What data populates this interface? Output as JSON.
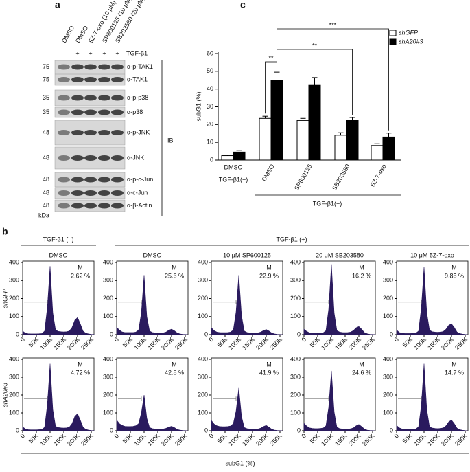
{
  "panel_labels": [
    "a",
    "b",
    "c"
  ],
  "blot": {
    "treatments": [
      "DMSO",
      "DMSO",
      "5Z-7-oxo (10 μM)",
      "SP600125 (10 μM)",
      "SB203580 (20 μM)"
    ],
    "tgf_signs": [
      "–",
      "+",
      "+",
      "+",
      "+"
    ],
    "tgf_label": "TGF-β1",
    "rows": [
      {
        "marker": "75",
        "label": "α-p-TAK1"
      },
      {
        "marker": "75",
        "label": "α-TAK1"
      },
      {
        "marker": "35",
        "label": "α-p-p38"
      },
      {
        "marker": "35",
        "label": "α-p38"
      },
      {
        "marker": "48",
        "label": "α-p-JNK"
      },
      {
        "marker": "48",
        "label": "α-JNK"
      },
      {
        "marker": "48",
        "label": "α-p-c-Jun"
      },
      {
        "marker": "48",
        "label": "α-c-Jun"
      },
      {
        "marker": "48",
        "label": "α-β-Actin"
      }
    ],
    "kda": "kDa",
    "ib": "IB"
  },
  "chart_data": {
    "type": "bar",
    "ylabel": "subG1 (%)",
    "categories": [
      "DMSO",
      "DMSO",
      "SP600125",
      "SB203580",
      "5Z-7-oxo"
    ],
    "group_labels": [
      "TGF-β1(−)",
      "TGF-β1(+)"
    ],
    "series": [
      {
        "name": "shGFP",
        "color": "#ffffff",
        "values": [
          2.5,
          23.5,
          22.3,
          14,
          8.2
        ],
        "errors": [
          0.4,
          1.2,
          1.2,
          1.4,
          1
        ]
      },
      {
        "name": "shA20#3",
        "color": "#000000",
        "values": [
          4.5,
          45,
          42.5,
          22.5,
          13
        ],
        "errors": [
          1,
          4.5,
          4,
          1.5,
          2.2
        ]
      }
    ],
    "ylim": [
      0,
      60
    ],
    "yticks": [
      0,
      10,
      20,
      30,
      40,
      50,
      60
    ],
    "annotations": [
      "**",
      "**",
      "***"
    ]
  },
  "flow_panel": {
    "group_labels": [
      "TGF-β1 (–)",
      "TGF-β1 (+)"
    ],
    "columns": [
      "DMSO",
      "DMSO",
      "10 μM SP600125",
      "20 μM SB203580",
      "10 μM 5Z-7-oxo"
    ],
    "rows": [
      "shGFP",
      "shA20#3"
    ],
    "xlabel": "subG1 (%)",
    "xlim": [
      0,
      260000
    ],
    "xticks": [
      0,
      {
        "value": 50000,
        "label": "50K"
      },
      {
        "value": 100000,
        "label": "100K"
      },
      {
        "value": 150000,
        "label": "150K"
      },
      {
        "value": 200000,
        "label": "200K"
      },
      {
        "value": 250000,
        "label": "250K"
      }
    ],
    "ylim": [
      0,
      400
    ],
    "yticks": [
      0,
      100,
      200,
      300,
      400
    ],
    "color": "#2a1a5e",
    "x": [
      0,
      10000,
      20000,
      30000,
      40000,
      50000,
      60000,
      70000,
      80000,
      90000,
      100000,
      110000,
      120000,
      130000,
      140000,
      150000,
      160000,
      170000,
      180000,
      190000,
      200000,
      210000,
      220000,
      230000,
      240000,
      250000,
      260000
    ],
    "histograms": [
      {
        "annotations": [
          "M",
          "2.62 %"
        ],
        "values": [
          20,
          8,
          5,
          4,
          4,
          4,
          5,
          6,
          20,
          150,
          380,
          120,
          25,
          18,
          16,
          15,
          16,
          20,
          40,
          80,
          95,
          60,
          20,
          8,
          4,
          2,
          1
        ]
      },
      {
        "annotations": [
          "M",
          "25.6 %"
        ],
        "values": [
          40,
          25,
          15,
          12,
          12,
          12,
          12,
          14,
          25,
          120,
          330,
          100,
          20,
          12,
          10,
          9,
          9,
          10,
          14,
          24,
          30,
          22,
          10,
          4,
          2,
          1,
          0
        ]
      },
      {
        "annotations": [
          "M",
          "22.9 %"
        ],
        "values": [
          38,
          22,
          14,
          12,
          11,
          11,
          12,
          14,
          25,
          125,
          330,
          105,
          20,
          12,
          10,
          9,
          9,
          10,
          14,
          22,
          28,
          20,
          9,
          4,
          2,
          1,
          0
        ]
      },
      {
        "annotations": [
          "M",
          "16.2 %"
        ],
        "values": [
          30,
          18,
          10,
          8,
          8,
          8,
          9,
          10,
          22,
          140,
          390,
          120,
          22,
          14,
          12,
          11,
          12,
          14,
          22,
          38,
          45,
          30,
          12,
          5,
          2,
          1,
          0
        ]
      },
      {
        "annotations": [
          "M",
          "9.85 %"
        ],
        "values": [
          25,
          12,
          8,
          6,
          6,
          6,
          7,
          8,
          20,
          145,
          375,
          120,
          24,
          16,
          14,
          13,
          14,
          17,
          30,
          52,
          60,
          40,
          15,
          6,
          3,
          1,
          0
        ]
      },
      {
        "annotations": [
          "M",
          "4.72 %"
        ],
        "values": [
          22,
          10,
          6,
          5,
          5,
          5,
          6,
          7,
          20,
          145,
          375,
          118,
          25,
          18,
          16,
          15,
          16,
          20,
          40,
          80,
          95,
          60,
          20,
          8,
          4,
          2,
          1
        ]
      },
      {
        "annotations": [
          "M",
          "42.8 %"
        ],
        "values": [
          60,
          40,
          30,
          25,
          24,
          24,
          25,
          28,
          40,
          100,
          200,
          70,
          18,
          12,
          10,
          9,
          9,
          10,
          14,
          20,
          25,
          18,
          8,
          4,
          2,
          1,
          0
        ]
      },
      {
        "annotations": [
          "M",
          "41.9 %"
        ],
        "values": [
          58,
          38,
          28,
          24,
          23,
          23,
          24,
          27,
          40,
          110,
          240,
          80,
          18,
          12,
          10,
          9,
          9,
          10,
          15,
          24,
          30,
          20,
          9,
          4,
          2,
          1,
          0
        ]
      },
      {
        "annotations": [
          "M",
          "24.6 %"
        ],
        "values": [
          42,
          26,
          16,
          13,
          12,
          12,
          13,
          15,
          28,
          130,
          335,
          105,
          20,
          12,
          10,
          9,
          9,
          11,
          16,
          28,
          35,
          24,
          10,
          4,
          2,
          1,
          0
        ]
      },
      {
        "annotations": [
          "M",
          "14.7 %"
        ],
        "values": [
          30,
          16,
          10,
          8,
          8,
          8,
          9,
          10,
          22,
          140,
          375,
          118,
          22,
          15,
          13,
          12,
          13,
          16,
          28,
          50,
          60,
          40,
          15,
          6,
          3,
          1,
          0
        ]
      }
    ]
  }
}
